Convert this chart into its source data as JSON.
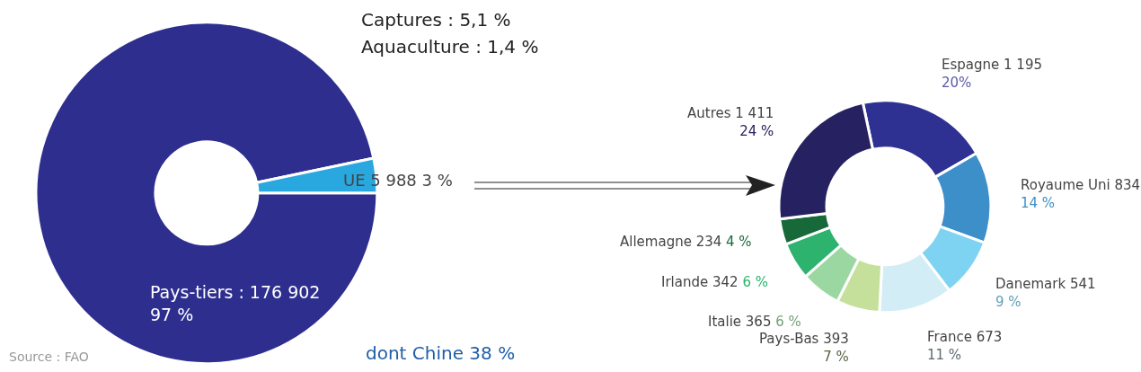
{
  "chart_data": [
    {
      "type": "donut",
      "categories": [
        "Pays-tiers",
        "UE"
      ],
      "values": [
        176902,
        5988
      ],
      "colors": [
        "#2e2e8f",
        "#29a8e0"
      ],
      "value_labels": [
        ": 176 902\n97 %",
        "5 988 3 %"
      ],
      "annotations": [
        "Captures : 5,1 %",
        "Aquaculture : 1,4 %",
        "dont Chine 38 %",
        "Source : FAO"
      ]
    },
    {
      "type": "donut",
      "categories": [
        "Espagne",
        "Royaume Uni",
        "Danemark",
        "France",
        "Pays-Bas",
        "Italie",
        "Irlande",
        "Allemagne",
        "Autres"
      ],
      "values": [
        1195,
        834,
        541,
        673,
        393,
        365,
        342,
        234,
        1411
      ],
      "colors": [
        "#2e3192",
        "#3d8fc9",
        "#7fd3f2",
        "#d3edf7",
        "#c5e09a",
        "#9bd7a0",
        "#2db36e",
        "#17693a",
        "#262261"
      ],
      "value_labels": [
        "1 195\n20%",
        "834\n14 %",
        "541\n9 %",
        "673\n11 %",
        "393\n7 %",
        "365 6 %",
        "342 6 %",
        "234 4 %",
        "1 411\n24 %"
      ]
    }
  ]
}
